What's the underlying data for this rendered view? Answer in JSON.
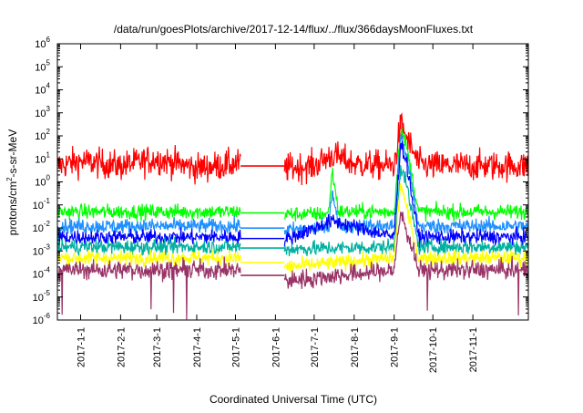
{
  "chart_data": {
    "type": "line",
    "title": "/data/run/goesPlots/archive/2017-12-14/flux/../flux/366daysMoonFluxes.txt",
    "xlabel": "Coordinated Universal Time (UTC)",
    "ylabel_main": "protons/cm",
    "ylabel_sup": "2",
    "ylabel_rest": "-s-sr-MeV",
    "y_scale": "log",
    "ylim": [
      1e-06,
      1000000.0
    ],
    "xlim": [
      "2016-12-14",
      "2017-12-14"
    ],
    "grid": false,
    "legend": "none",
    "y_ticks": [
      {
        "value": 1e-06,
        "base": "10",
        "exp": "-6"
      },
      {
        "value": 1e-05,
        "base": "10",
        "exp": "-5"
      },
      {
        "value": 0.0001,
        "base": "10",
        "exp": "-4"
      },
      {
        "value": 0.001,
        "base": "10",
        "exp": "-3"
      },
      {
        "value": 0.01,
        "base": "10",
        "exp": "-2"
      },
      {
        "value": 0.1,
        "base": "10",
        "exp": "-1"
      },
      {
        "value": 1,
        "base": "10",
        "exp": "0"
      },
      {
        "value": 10,
        "base": "10",
        "exp": "1"
      },
      {
        "value": 100,
        "base": "10",
        "exp": "2"
      },
      {
        "value": 1000,
        "base": "10",
        "exp": "3"
      },
      {
        "value": 10000,
        "base": "10",
        "exp": "4"
      },
      {
        "value": 100000,
        "base": "10",
        "exp": "5"
      },
      {
        "value": 1000000,
        "base": "10",
        "exp": "6"
      }
    ],
    "x_ticks": [
      {
        "date": "2017-01-01",
        "label": "2017-1-1"
      },
      {
        "date": "2017-02-01",
        "label": "2017-2-1"
      },
      {
        "date": "2017-03-01",
        "label": "2017-3-1"
      },
      {
        "date": "2017-04-01",
        "label": "2017-4-1"
      },
      {
        "date": "2017-05-01",
        "label": "2017-5-1"
      },
      {
        "date": "2017-06-01",
        "label": "2017-6-1"
      },
      {
        "date": "2017-07-01",
        "label": "2017-7-1"
      },
      {
        "date": "2017-08-01",
        "label": "2017-8-1"
      },
      {
        "date": "2017-09-01",
        "label": "2017-9-1"
      },
      {
        "date": "2017-10-01",
        "label": "2017-10-1"
      },
      {
        "date": "2017-11-01",
        "label": "2017-11-1"
      }
    ],
    "data_gap": [
      "2017-05-05",
      "2017-06-08"
    ],
    "series": [
      {
        "color": "#ff0000",
        "x": [
          "2016-12-14",
          "2017-01-01",
          "2017-02-01",
          "2017-03-01",
          "2017-04-01",
          "2017-05-01",
          "2017-05-05",
          "2017-06-08",
          "2017-07-01",
          "2017-07-15",
          "2017-08-01",
          "2017-09-01",
          "2017-09-06",
          "2017-09-10",
          "2017-09-20",
          "2017-10-01",
          "2017-11-01",
          "2017-12-14"
        ],
        "y": [
          5,
          8,
          5,
          10,
          4,
          6,
          6,
          4,
          5,
          15,
          6,
          5,
          300,
          100,
          6,
          5,
          5,
          5
        ]
      },
      {
        "color": "#00ff00",
        "x": [
          "2016-12-14",
          "2017-02-01",
          "2017-04-01",
          "2017-05-05",
          "2017-06-08",
          "2017-07-12",
          "2017-07-15",
          "2017-07-20",
          "2017-09-01",
          "2017-09-06",
          "2017-09-10",
          "2017-09-20",
          "2017-11-01",
          "2017-12-14"
        ],
        "y": [
          0.05,
          0.05,
          0.05,
          0.05,
          0.04,
          0.04,
          3,
          0.05,
          0.05,
          200,
          50,
          0.05,
          0.05,
          0.05
        ]
      },
      {
        "color": "#1e90ff",
        "x": [
          "2016-12-14",
          "2017-02-01",
          "2017-04-01",
          "2017-05-05",
          "2017-06-08",
          "2017-07-12",
          "2017-07-15",
          "2017-07-20",
          "2017-09-01",
          "2017-09-06",
          "2017-09-10",
          "2017-09-20",
          "2017-11-01",
          "2017-12-14"
        ],
        "y": [
          0.012,
          0.012,
          0.012,
          0.012,
          0.008,
          0.01,
          0.5,
          0.012,
          0.012,
          100,
          20,
          0.012,
          0.012,
          0.012
        ]
      },
      {
        "color": "#0000ff",
        "x": [
          "2016-12-14",
          "2017-02-01",
          "2017-04-01",
          "2017-05-05",
          "2017-06-08",
          "2017-07-15",
          "2017-09-01",
          "2017-09-06",
          "2017-09-10",
          "2017-09-20",
          "2017-11-01",
          "2017-12-14"
        ],
        "y": [
          0.004,
          0.004,
          0.004,
          0.004,
          0.003,
          0.02,
          0.004,
          50,
          10,
          0.004,
          0.004,
          0.004
        ]
      },
      {
        "color": "#00b0a0",
        "x": [
          "2016-12-14",
          "2017-02-01",
          "2017-04-01",
          "2017-05-05",
          "2017-06-08",
          "2017-09-01",
          "2017-09-06",
          "2017-09-10",
          "2017-09-20",
          "2017-11-01",
          "2017-12-14"
        ],
        "y": [
          0.0015,
          0.0015,
          0.0015,
          0.0015,
          0.0012,
          0.0015,
          5,
          1,
          0.0015,
          0.0015,
          0.0015
        ]
      },
      {
        "color": "#ffff00",
        "x": [
          "2016-12-14",
          "2017-02-01",
          "2017-04-01",
          "2017-05-05",
          "2017-06-08",
          "2017-09-01",
          "2017-09-06",
          "2017-09-10",
          "2017-09-20",
          "2017-11-01",
          "2017-12-14"
        ],
        "y": [
          0.0005,
          0.0005,
          0.0005,
          0.0005,
          0.0002,
          0.0005,
          1,
          0.1,
          0.0005,
          0.0005,
          0.0005
        ]
      },
      {
        "color": "#993366",
        "x": [
          "2016-12-14",
          "2017-02-01",
          "2017-04-01",
          "2017-05-05",
          "2017-06-08",
          "2017-09-01",
          "2017-09-06",
          "2017-09-10",
          "2017-09-20",
          "2017-11-01",
          "2017-12-14"
        ],
        "y": [
          0.00015,
          0.00015,
          0.00015,
          0.00015,
          5e-05,
          0.00015,
          0.05,
          0.01,
          0.00015,
          0.00015,
          0.00015
        ]
      }
    ]
  }
}
